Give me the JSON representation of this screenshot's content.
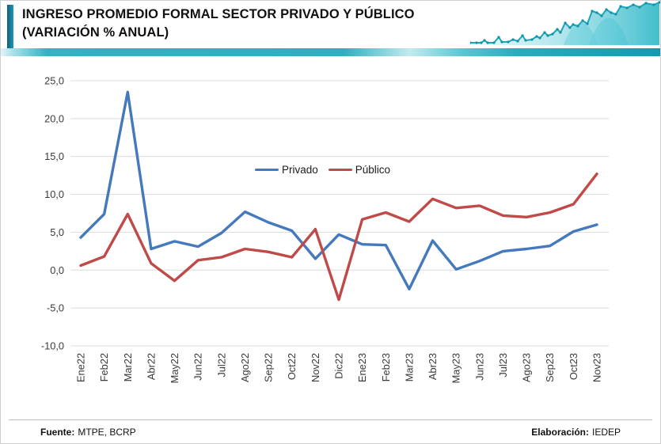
{
  "header": {
    "title_line1": "INGRESO PROMEDIO FORMAL SECTOR PRIVADO Y PÚBLICO",
    "title_line2": "(VARIACIÓN % ANUAL)"
  },
  "footer": {
    "source_label": "Fuente:",
    "source_value": "MTPE, BCRP",
    "elaboration_label": "Elaboración:",
    "elaboration_value": "IEDEP"
  },
  "colors": {
    "privado": "#4579bd",
    "publico": "#c04a47",
    "gridline": "#dcdcdc",
    "teal_accent": "#2fb2c3",
    "axis_text": "#3b3b3b"
  },
  "chart_data": {
    "type": "line",
    "title": "INGRESO PROMEDIO FORMAL SECTOR PRIVADO Y PÚBLICO (VARIACIÓN % ANUAL)",
    "xlabel": "",
    "ylabel": "",
    "ylim": [
      -10,
      25
    ],
    "ytick_step": 5,
    "grid": true,
    "legend_position": "inside-upper-center",
    "categories": [
      "Ene22",
      "Feb22",
      "Mar22",
      "Abr22",
      "May22",
      "Jun22",
      "Jul22",
      "Ago22",
      "Sep22",
      "Oct22",
      "Nov22",
      "Dic22",
      "Ene23",
      "Feb23",
      "Mar23",
      "Abr23",
      "May23",
      "Jun23",
      "Jul23",
      "Ago23",
      "Sep23",
      "Oct23",
      "Nov23"
    ],
    "series": [
      {
        "name": "Privado",
        "color": "#4579bd",
        "values": [
          4.3,
          7.4,
          23.5,
          2.8,
          3.8,
          3.1,
          4.9,
          7.7,
          6.3,
          5.2,
          1.5,
          4.7,
          3.4,
          3.3,
          -2.5,
          3.9,
          0.1,
          1.2,
          2.5,
          2.8,
          3.2,
          5.1,
          6.0
        ]
      },
      {
        "name": "Público",
        "color": "#c04a47",
        "values": [
          0.6,
          1.8,
          7.4,
          0.9,
          -1.4,
          1.3,
          1.7,
          2.8,
          2.4,
          1.7,
          5.4,
          -3.9,
          6.7,
          7.6,
          6.4,
          9.4,
          8.2,
          8.5,
          7.2,
          7.0,
          7.6,
          8.7,
          12.7
        ]
      }
    ]
  }
}
